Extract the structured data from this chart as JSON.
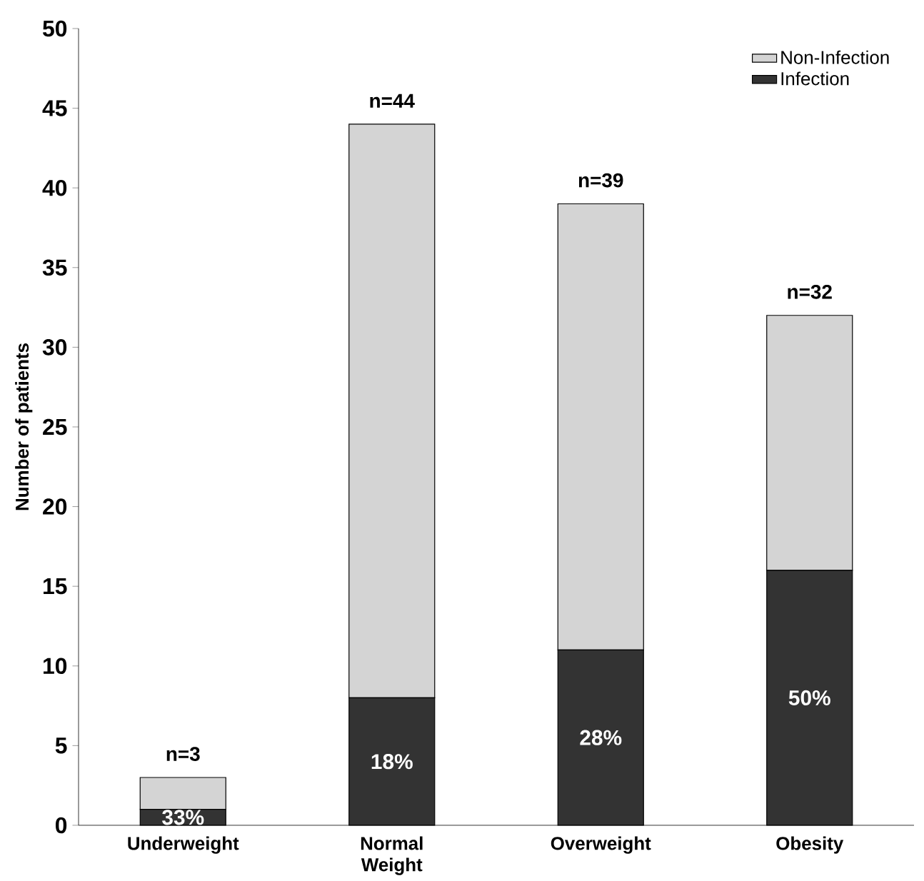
{
  "chart_data": {
    "type": "bar",
    "stacked": true,
    "ylabel": "Number of patients",
    "categories": [
      "Underweight",
      "Normal Weight",
      "Overweight",
      "Obesity"
    ],
    "series": [
      {
        "name": "Infection",
        "color": "#333333",
        "values": [
          1,
          8,
          11,
          16
        ]
      },
      {
        "name": "Non-Infection",
        "color": "#d4d4d4",
        "values": [
          2,
          36,
          28,
          16
        ]
      }
    ],
    "totals": [
      "n=3",
      "n=44",
      "n=39",
      "n=32"
    ],
    "annotations": [
      "33%",
      "18%",
      "28%",
      "50%"
    ],
    "ylim": [
      0,
      50
    ],
    "yticks": [
      0,
      5,
      10,
      15,
      20,
      25,
      30,
      35,
      40,
      45,
      50
    ],
    "grid": false,
    "legend": "top right"
  }
}
